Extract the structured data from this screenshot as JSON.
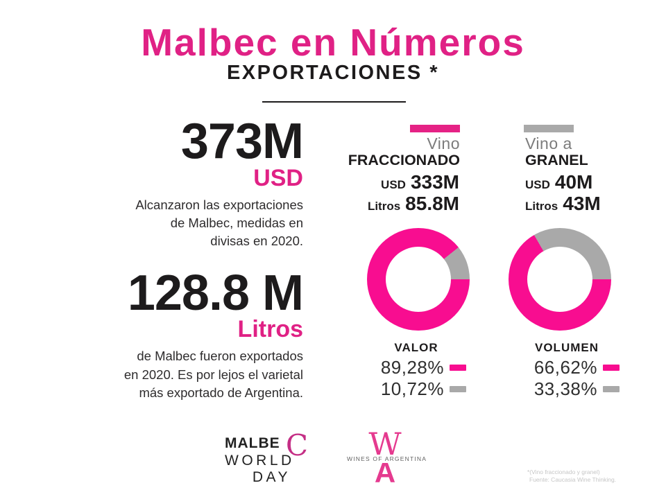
{
  "colors": {
    "accent_pink": "#e52285",
    "donut_pink": "#f80d90",
    "gray": "#a9a9a9",
    "text_black": "#1d1b1c"
  },
  "header": {
    "title": "Malbec en Números",
    "subtitle": "EXPORTACIONES *"
  },
  "totals": {
    "usd": {
      "value": "373M",
      "unit": "USD",
      "desc_lines": [
        "Alcanzaron las exportaciones",
        "de Malbec, medidas en",
        "divisas en 2020."
      ]
    },
    "litros": {
      "value": "128.8 M",
      "unit": "Litros",
      "desc_lines": [
        "de Malbec fueron exportados",
        "en 2020. Es por lejos el varietal",
        "más exportado de Argentina."
      ]
    }
  },
  "fraccionado": {
    "label_thin": "Vino",
    "label_bold": "FRACCIONADO",
    "usd_label": "USD",
    "usd_value": "333M",
    "litros_label": "Litros",
    "litros_value": "85.8M"
  },
  "granel": {
    "label_thin": "Vino a",
    "label_bold": "GRANEL",
    "usd_label": "USD",
    "usd_value": "40M",
    "litros_label": "Litros",
    "litros_value": "43M"
  },
  "chart_data": [
    {
      "type": "pie",
      "variant": "donut",
      "title": "VALOR",
      "labels": [
        "Vino fraccionado",
        "Vino a granel"
      ],
      "values": [
        89.28,
        10.72
      ],
      "value_labels": [
        "89,28%",
        "10,72%"
      ],
      "colors": [
        "#f80d90",
        "#a9a9a9"
      ],
      "start_angle_deg": 90,
      "legend_position": "below"
    },
    {
      "type": "pie",
      "variant": "donut",
      "title": "VOLUMEN",
      "labels": [
        "Vino fraccionado",
        "Vino a granel"
      ],
      "values": [
        66.62,
        33.38
      ],
      "value_labels": [
        "66,62%",
        "33,38%"
      ],
      "colors": [
        "#f80d90",
        "#a9a9a9"
      ],
      "start_angle_deg": 90,
      "legend_position": "below"
    }
  ],
  "footer": {
    "mwd_logo": {
      "line1": "MALBE",
      "c": "C",
      "line2": "WORLD",
      "line3": "DAY"
    },
    "woa_logo": {
      "w": "W",
      "text": "WINES OF ARGENTINA",
      "a": "A"
    },
    "footnote_line1": "*(Vino fraccionado  y granel)",
    "footnote_line2": "Fuente: Caucasia  Wine Thinking."
  }
}
